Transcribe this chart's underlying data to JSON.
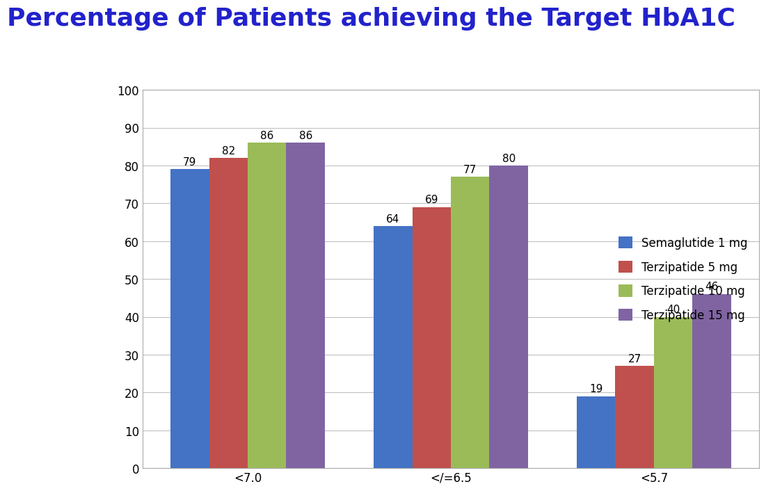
{
  "title": "Percentage of Patients achieving the Target HbA1C",
  "title_color": "#2222CC",
  "title_fontsize": 26,
  "categories": [
    "<7.0",
    "</=6.5",
    "<5.7"
  ],
  "series": {
    "Semaglutide 1 mg": [
      79,
      64,
      19
    ],
    "Terzipatide 5 mg": [
      82,
      69,
      27
    ],
    "Terzipatide 10 mg": [
      86,
      77,
      40
    ],
    "Terzipatide 15 mg": [
      86,
      80,
      46
    ]
  },
  "colors": {
    "Semaglutide 1 mg": "#4472C4",
    "Terzipatide 5 mg": "#C0504D",
    "Terzipatide 10 mg": "#9BBB59",
    "Terzipatide 15 mg": "#8064A2"
  },
  "ylim": [
    0,
    100
  ],
  "yticks": [
    0,
    10,
    20,
    30,
    40,
    50,
    60,
    70,
    80,
    90,
    100
  ],
  "bar_width": 0.19,
  "background_color": "#FFFFFF",
  "plot_bg_color": "#FFFFFF",
  "grid_color": "#C0C0C0",
  "label_fontsize": 11,
  "tick_fontsize": 12,
  "legend_fontsize": 12,
  "box_color": "#AAAAAA"
}
